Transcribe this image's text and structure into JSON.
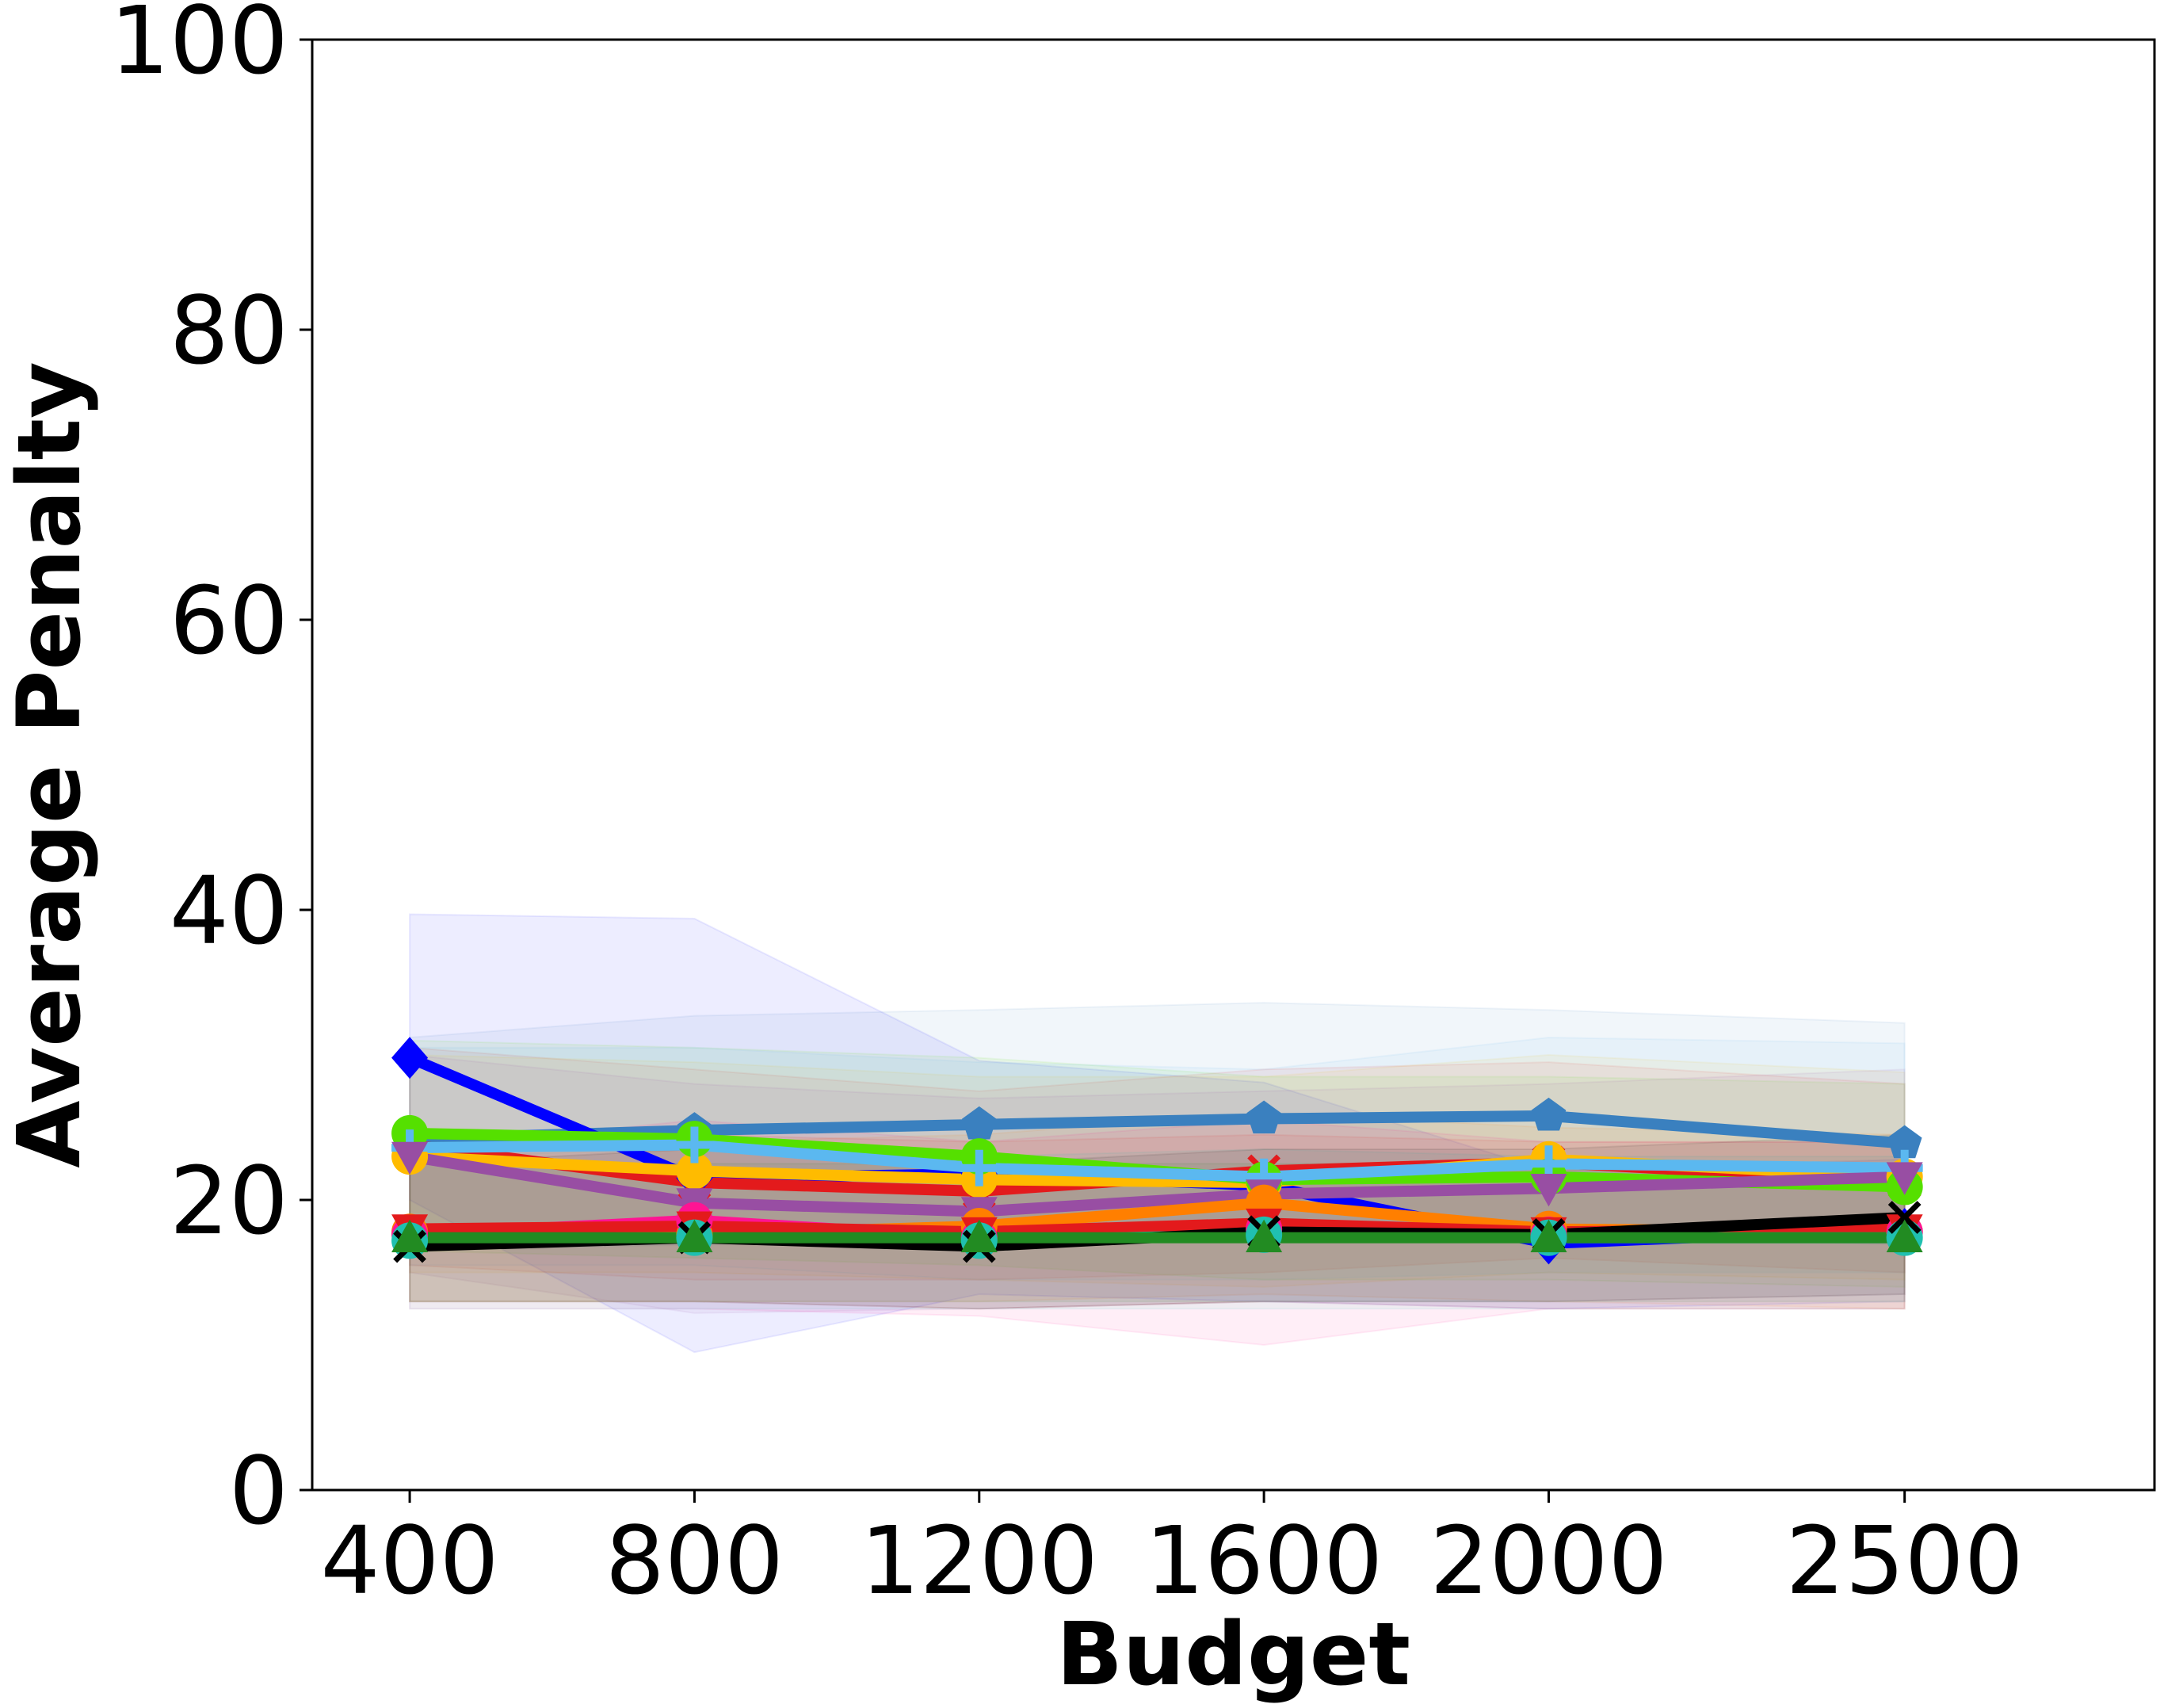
{
  "chart_data": {
    "type": "line",
    "title": "",
    "xlabel": "Budget",
    "ylabel": "Average Penalty",
    "x": [
      400,
      800,
      1200,
      1600,
      2000,
      2500
    ],
    "x_tick_labels": [
      "400",
      "800",
      "1200",
      "1600",
      "2000",
      "2500"
    ],
    "y_ticks": [
      0,
      20,
      40,
      60,
      80,
      100
    ],
    "y_tick_labels": [
      "0",
      "20",
      "40",
      "60",
      "80",
      "100"
    ],
    "xlim": [
      263,
      2851
    ],
    "ylim": [
      0,
      100
    ],
    "grid": false,
    "legend": "none",
    "series": [
      {
        "color": "#3a80bf",
        "marker": "pentagon",
        "values": [
          24.2,
          24.8,
          25.2,
          25.6,
          25.8,
          23.9
        ],
        "lower": [
          16.5,
          16.9,
          17.3,
          17.5,
          17.6,
          16.9
        ],
        "upper": [
          31.2,
          32.7,
          33.1,
          33.6,
          33.1,
          32.2
        ]
      },
      {
        "color": "#0000ff",
        "marker": "diamond",
        "values": [
          29.8,
          21.5,
          21.8,
          21.0,
          17.0,
          18.0
        ],
        "lower": [
          20.0,
          9.5,
          13.5,
          13.0,
          12.5,
          13.0
        ],
        "upper": [
          39.7,
          39.4,
          29.6,
          28.1,
          22.0,
          22.8
        ]
      },
      {
        "color": "#e31a1c",
        "marker": "x",
        "values": [
          23.8,
          21.2,
          20.6,
          22.0,
          22.6,
          21.2
        ],
        "lower": [
          15.5,
          14.5,
          14.5,
          15.0,
          16.0,
          15.0
        ],
        "upper": [
          30.5,
          29.0,
          27.5,
          29.0,
          29.5,
          28.0
        ]
      },
      {
        "color": "#ffbb00",
        "marker": "circle",
        "values": [
          23.0,
          22.0,
          21.4,
          21.2,
          22.8,
          21.6
        ],
        "lower": [
          15.0,
          15.0,
          14.5,
          14.0,
          15.0,
          14.5
        ],
        "upper": [
          30.0,
          29.5,
          28.5,
          28.5,
          30.0,
          28.8
        ]
      },
      {
        "color": "#55e000",
        "marker": "circle",
        "values": [
          24.6,
          24.2,
          23.0,
          21.4,
          21.6,
          20.9
        ],
        "lower": [
          16.5,
          16.0,
          15.5,
          14.5,
          14.5,
          14.0
        ],
        "upper": [
          31.0,
          30.5,
          29.8,
          28.5,
          28.5,
          28.0
        ]
      },
      {
        "color": "#5bb8f0",
        "marker": "plus",
        "values": [
          23.6,
          23.8,
          22.2,
          21.6,
          22.5,
          22.2
        ],
        "lower": [
          15.5,
          15.5,
          14.5,
          14.5,
          15.0,
          15.0
        ],
        "upper": [
          30.5,
          30.5,
          29.5,
          29.0,
          31.2,
          30.8
        ]
      },
      {
        "color": "#984ea3",
        "marker": "triangle-down",
        "values": [
          23.0,
          19.8,
          19.2,
          20.4,
          20.8,
          21.6
        ],
        "lower": [
          15.0,
          12.2,
          12.5,
          13.0,
          13.0,
          13.5
        ],
        "upper": [
          30.0,
          28.0,
          27.0,
          27.5,
          28.0,
          29.0
        ]
      },
      {
        "color": "#ff7f00",
        "marker": "circle",
        "values": [
          17.8,
          17.6,
          18.2,
          19.8,
          18.0,
          17.8
        ],
        "lower": [
          13.0,
          13.0,
          13.0,
          13.5,
          13.0,
          12.5
        ],
        "upper": [
          24.0,
          24.0,
          24.5,
          26.0,
          25.0,
          24.5
        ]
      },
      {
        "color": "#ff1493",
        "marker": "circle",
        "values": [
          17.6,
          18.6,
          17.4,
          18.0,
          17.6,
          17.8
        ],
        "lower": [
          12.5,
          12.5,
          12.0,
          10.0,
          12.5,
          12.5
        ],
        "upper": [
          23.5,
          25.5,
          24.0,
          25.5,
          24.0,
          24.0
        ]
      },
      {
        "color": "#e31a1c",
        "marker": "triangle-down",
        "values": [
          18.0,
          18.2,
          17.8,
          18.4,
          17.8,
          18.0
        ],
        "lower": [
          13.0,
          13.0,
          12.5,
          13.0,
          12.5,
          12.5
        ],
        "upper": [
          24.5,
          24.5,
          24.0,
          24.5,
          24.0,
          24.0
        ]
      },
      {
        "color": "#20c0b0",
        "marker": "circle",
        "values": [
          17.2,
          17.4,
          17.2,
          17.6,
          17.4,
          17.4
        ],
        "lower": [
          12.5,
          12.5,
          12.5,
          12.5,
          12.5,
          12.5
        ],
        "upper": [
          23.0,
          23.5,
          23.0,
          23.5,
          23.0,
          23.0
        ]
      },
      {
        "color": "#000000",
        "marker": "x",
        "values": [
          16.8,
          17.4,
          16.8,
          17.8,
          17.6,
          18.8
        ],
        "lower": [
          13.0,
          13.0,
          12.5,
          13.0,
          13.0,
          13.5
        ],
        "upper": [
          22.5,
          23.5,
          22.5,
          23.5,
          23.5,
          24.5
        ]
      },
      {
        "color": "#228b22",
        "marker": "triangle-up",
        "values": [
          17.4,
          17.4,
          17.4,
          17.4,
          17.4,
          17.4
        ],
        "lower": [
          13.0,
          13.0,
          13.0,
          13.0,
          13.0,
          13.0
        ],
        "upper": [
          22.5,
          22.5,
          22.5,
          22.5,
          22.5,
          22.5
        ]
      }
    ]
  }
}
